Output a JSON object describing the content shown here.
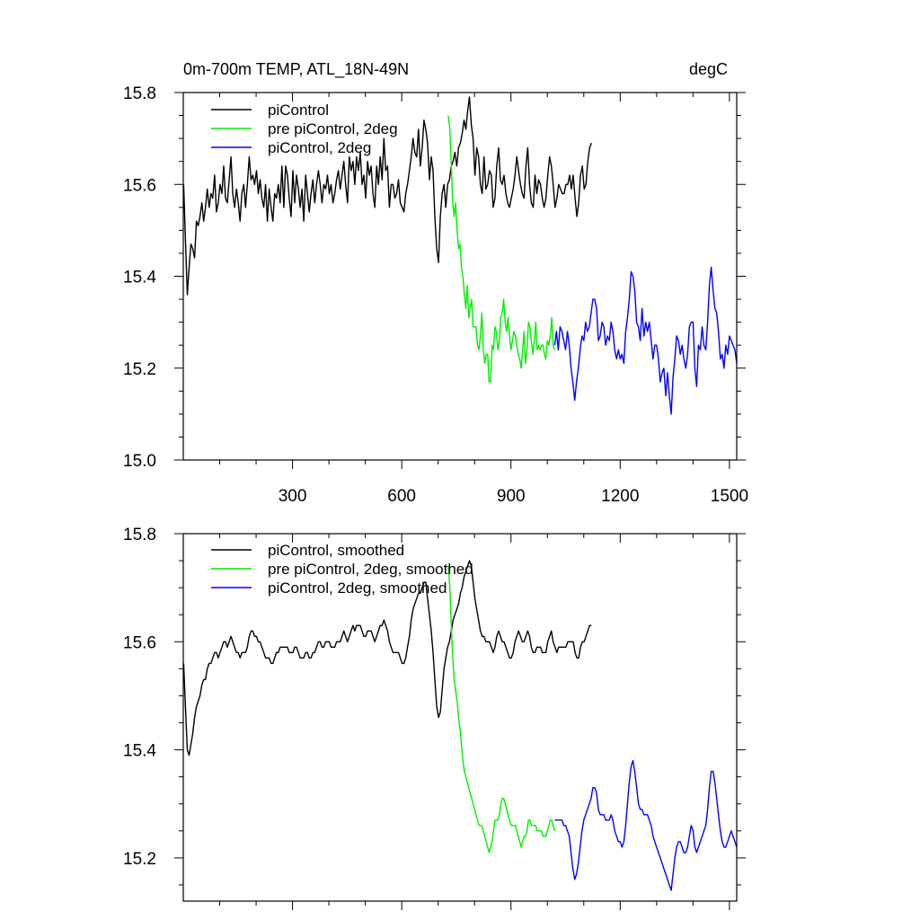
{
  "chart_data": [
    {
      "type": "line",
      "title_left": "0m-700m TEMP, ATL_18N-49N",
      "title_right": "degC",
      "xlim": [
        0,
        1520
      ],
      "ylim": [
        15.0,
        15.8
      ],
      "xticks": [
        300,
        600,
        900,
        1200,
        1500
      ],
      "yticks": [
        15.0,
        15.2,
        15.4,
        15.6,
        15.8
      ],
      "ytick_labels": [
        "15.0",
        "15.2",
        "15.4",
        "15.6",
        "15.8"
      ],
      "legend_position": "top-left",
      "series": [
        {
          "name": "piControl",
          "color": "#000000",
          "start": 1,
          "end": 1200,
          "step": 5,
          "values": [
            15.6,
            15.48,
            15.36,
            15.42,
            15.47,
            15.46,
            15.44,
            15.52,
            15.51,
            15.53,
            15.56,
            15.52,
            15.55,
            15.59,
            15.55,
            15.58,
            15.57,
            15.62,
            15.54,
            15.56,
            15.6,
            15.58,
            15.64,
            15.57,
            15.56,
            15.61,
            15.66,
            15.58,
            15.55,
            15.59,
            15.56,
            15.52,
            15.58,
            15.6,
            15.55,
            15.6,
            15.66,
            15.61,
            15.62,
            15.6,
            15.63,
            15.58,
            15.61,
            15.57,
            15.55,
            15.6,
            15.52,
            15.59,
            15.55,
            15.52,
            15.58,
            15.57,
            15.6,
            15.56,
            15.64,
            15.55,
            15.64,
            15.62,
            15.57,
            15.53,
            15.63,
            15.56,
            15.62,
            15.59,
            15.55,
            15.59,
            15.52,
            15.62,
            15.58,
            15.54,
            15.58,
            15.61,
            15.56,
            15.6,
            15.63,
            15.6,
            15.56,
            15.6,
            15.59,
            15.62,
            15.58,
            15.6,
            15.56,
            15.58,
            15.61,
            15.63,
            15.59,
            15.62,
            15.65,
            15.6,
            15.56,
            15.66,
            15.63,
            15.65,
            15.6,
            15.66,
            15.63,
            15.67,
            15.6,
            15.62,
            15.57,
            15.65,
            15.62,
            15.64,
            15.58,
            15.55,
            15.64,
            15.6,
            15.66,
            15.61,
            15.7,
            15.63,
            15.64,
            15.55,
            15.6,
            15.6,
            15.57,
            15.58,
            15.61,
            15.56,
            15.55,
            15.54,
            15.58,
            15.6,
            15.63,
            15.66,
            15.7,
            15.67,
            15.66,
            15.72,
            15.64,
            15.68,
            15.74,
            15.72,
            15.69,
            15.61,
            15.66,
            15.63,
            15.53,
            15.46,
            15.43,
            15.53,
            15.58,
            15.6,
            15.55,
            15.6,
            15.61,
            15.64,
            15.65,
            15.67,
            15.64,
            15.68,
            15.69,
            15.71,
            15.74,
            15.72,
            15.76,
            15.79,
            15.73,
            15.7,
            15.62,
            15.68,
            15.66,
            15.6,
            15.58,
            15.66,
            15.59,
            15.6,
            15.63,
            15.62,
            15.55,
            15.57,
            15.64,
            15.68,
            15.61,
            15.6,
            15.62,
            15.58,
            15.56,
            15.55,
            15.57,
            15.59,
            15.62,
            15.66,
            15.63,
            15.6,
            15.58,
            15.57,
            15.64,
            15.68,
            15.6,
            15.56,
            15.55,
            15.62,
            15.58,
            15.61,
            15.6,
            15.57,
            15.55,
            15.57,
            15.62,
            15.66,
            15.64,
            15.6,
            15.55,
            15.57,
            15.6,
            15.59,
            15.58,
            15.58,
            15.6,
            15.6,
            15.62,
            15.59,
            15.62,
            15.57,
            15.53,
            15.56,
            15.62,
            15.64,
            15.59,
            15.6,
            15.65,
            15.68,
            15.69
          ]
        },
        {
          "name": "pre piControl, 2deg",
          "color": "#00ee00",
          "start": 728,
          "end": 1020,
          "step": 4,
          "values": [
            15.75,
            15.72,
            15.64,
            15.56,
            15.53,
            15.56,
            15.5,
            15.46,
            15.47,
            15.42,
            15.4,
            15.36,
            15.33,
            15.38,
            15.31,
            15.33,
            15.35,
            15.29,
            15.29,
            15.29,
            15.25,
            15.24,
            15.27,
            15.32,
            15.24,
            15.21,
            15.23,
            15.23,
            15.17,
            15.17,
            15.25,
            15.24,
            15.29,
            15.28,
            15.24,
            15.26,
            15.31,
            15.32,
            15.35,
            15.3,
            15.28,
            15.31,
            15.27,
            15.24,
            15.26,
            15.28,
            15.27,
            15.25,
            15.23,
            15.22,
            15.2,
            15.24,
            15.28,
            15.21,
            15.24,
            15.3,
            15.29,
            15.26,
            15.23,
            15.26,
            15.3,
            15.24,
            15.25,
            15.24,
            15.25,
            15.25,
            15.23,
            15.22,
            15.26,
            15.25,
            15.27,
            15.31,
            15.25,
            15.24
          ]
        },
        {
          "name": "piControl, 2deg",
          "color": "#0000ff",
          "start": 1020,
          "end": 1520,
          "step": 5,
          "values": [
            15.25,
            15.28,
            15.24,
            15.29,
            15.28,
            15.26,
            15.24,
            15.28,
            15.25,
            15.2,
            15.17,
            15.13,
            15.17,
            15.2,
            15.24,
            15.27,
            15.26,
            15.3,
            15.28,
            15.29,
            15.32,
            15.35,
            15.35,
            15.33,
            15.26,
            15.27,
            15.3,
            15.29,
            15.25,
            15.27,
            15.26,
            15.3,
            15.28,
            15.24,
            15.22,
            15.24,
            15.22,
            15.23,
            15.21,
            15.28,
            15.31,
            15.35,
            15.41,
            15.4,
            15.37,
            15.3,
            15.29,
            15.26,
            15.33,
            15.27,
            15.3,
            15.28,
            15.3,
            15.26,
            15.22,
            15.25,
            15.25,
            15.22,
            15.17,
            15.19,
            15.2,
            15.14,
            15.19,
            15.14,
            15.1,
            15.18,
            15.22,
            15.27,
            15.26,
            15.23,
            15.25,
            15.22,
            15.2,
            15.23,
            15.29,
            15.3,
            15.3,
            15.2,
            15.16,
            15.25,
            15.24,
            15.29,
            15.25,
            15.24,
            15.3,
            15.38,
            15.42,
            15.37,
            15.33,
            15.32,
            15.28,
            15.22,
            15.23,
            15.2,
            15.25,
            15.23,
            15.27,
            15.26,
            15.25,
            15.24,
            15.21
          ]
        }
      ]
    },
    {
      "type": "line",
      "xlim": [
        0,
        1520
      ],
      "ylim": [
        15.12,
        15.8
      ],
      "xticks": [
        300,
        600,
        900,
        1200,
        1500
      ],
      "yticks": [
        15.2,
        15.4,
        15.6,
        15.8
      ],
      "ytick_labels": [
        "15.2",
        "15.4",
        "15.6",
        "15.8"
      ],
      "legend_position": "top-left",
      "series": [
        {
          "name": "piControl, smoothed",
          "color": "#000000",
          "start": 1,
          "end": 1200,
          "step": 5,
          "values": [
            15.56,
            15.48,
            15.4,
            15.39,
            15.41,
            15.43,
            15.46,
            15.48,
            15.49,
            15.5,
            15.52,
            15.53,
            15.53,
            15.55,
            15.56,
            15.56,
            15.57,
            15.58,
            15.58,
            15.57,
            15.58,
            15.59,
            15.6,
            15.6,
            15.59,
            15.6,
            15.61,
            15.6,
            15.59,
            15.58,
            15.58,
            15.57,
            15.58,
            15.58,
            15.58,
            15.59,
            15.61,
            15.62,
            15.62,
            15.61,
            15.61,
            15.6,
            15.6,
            15.59,
            15.58,
            15.57,
            15.57,
            15.57,
            15.56,
            15.56,
            15.57,
            15.58,
            15.58,
            15.59,
            15.59,
            15.59,
            15.59,
            15.59,
            15.58,
            15.58,
            15.58,
            15.59,
            15.59,
            15.58,
            15.57,
            15.57,
            15.57,
            15.58,
            15.58,
            15.57,
            15.57,
            15.58,
            15.58,
            15.59,
            15.6,
            15.6,
            15.59,
            15.59,
            15.6,
            15.6,
            15.6,
            15.59,
            15.59,
            15.59,
            15.6,
            15.6,
            15.6,
            15.61,
            15.62,
            15.61,
            15.6,
            15.61,
            15.62,
            15.63,
            15.62,
            15.63,
            15.63,
            15.63,
            15.62,
            15.61,
            15.61,
            15.62,
            15.62,
            15.62,
            15.61,
            15.6,
            15.61,
            15.62,
            15.63,
            15.63,
            15.64,
            15.63,
            15.62,
            15.6,
            15.59,
            15.58,
            15.58,
            15.58,
            15.58,
            15.57,
            15.56,
            15.56,
            15.57,
            15.59,
            15.61,
            15.64,
            15.66,
            15.67,
            15.68,
            15.69,
            15.69,
            15.7,
            15.71,
            15.71,
            15.68,
            15.65,
            15.62,
            15.58,
            15.53,
            15.48,
            15.46,
            15.47,
            15.51,
            15.55,
            15.57,
            15.59,
            15.6,
            15.62,
            15.64,
            15.65,
            15.66,
            15.67,
            15.69,
            15.7,
            15.72,
            15.73,
            15.74,
            15.75,
            15.74,
            15.71,
            15.68,
            15.66,
            15.64,
            15.62,
            15.61,
            15.61,
            15.6,
            15.6,
            15.6,
            15.59,
            15.58,
            15.59,
            15.61,
            15.62,
            15.61,
            15.6,
            15.6,
            15.59,
            15.58,
            15.57,
            15.57,
            15.58,
            15.6,
            15.61,
            15.62,
            15.61,
            15.6,
            15.6,
            15.61,
            15.62,
            15.61,
            15.59,
            15.58,
            15.58,
            15.59,
            15.59,
            15.59,
            15.58,
            15.58,
            15.58,
            15.6,
            15.61,
            15.62,
            15.6,
            15.59,
            15.58,
            15.59,
            15.59,
            15.59,
            15.59,
            15.59,
            15.6,
            15.6,
            15.6,
            15.6,
            15.58,
            15.57,
            15.57,
            15.59,
            15.6,
            15.6,
            15.61,
            15.62,
            15.63,
            15.63
          ]
        },
        {
          "name": "pre piControl, 2deg, smoothed",
          "color": "#00ee00",
          "start": 728,
          "end": 1020,
          "step": 4,
          "values": [
            15.74,
            15.7,
            15.63,
            15.57,
            15.53,
            15.51,
            15.49,
            15.46,
            15.44,
            15.41,
            15.38,
            15.36,
            15.35,
            15.34,
            15.33,
            15.32,
            15.31,
            15.3,
            15.29,
            15.28,
            15.27,
            15.26,
            15.26,
            15.26,
            15.25,
            15.24,
            15.23,
            15.22,
            15.21,
            15.22,
            15.23,
            15.25,
            15.27,
            15.27,
            15.27,
            15.28,
            15.3,
            15.31,
            15.31,
            15.3,
            15.29,
            15.28,
            15.27,
            15.26,
            15.26,
            15.26,
            15.26,
            15.25,
            15.24,
            15.23,
            15.22,
            15.23,
            15.24,
            15.24,
            15.25,
            15.27,
            15.27,
            15.26,
            15.26,
            15.26,
            15.26,
            15.25,
            15.25,
            15.25,
            15.25,
            15.24,
            15.24,
            15.24,
            15.25,
            15.26,
            15.27,
            15.27,
            15.26,
            15.25
          ]
        },
        {
          "name": "piControl, 2deg, smoothed",
          "color": "#0000ff",
          "start": 1020,
          "end": 1520,
          "step": 5,
          "values": [
            15.27,
            15.27,
            15.27,
            15.27,
            15.27,
            15.26,
            15.26,
            15.25,
            15.24,
            15.21,
            15.18,
            15.16,
            15.17,
            15.19,
            15.22,
            15.25,
            15.27,
            15.28,
            15.29,
            15.3,
            15.31,
            15.33,
            15.33,
            15.32,
            15.29,
            15.28,
            15.28,
            15.28,
            15.27,
            15.27,
            15.27,
            15.28,
            15.27,
            15.25,
            15.24,
            15.23,
            15.23,
            15.22,
            15.23,
            15.26,
            15.3,
            15.34,
            15.37,
            15.38,
            15.36,
            15.33,
            15.3,
            15.29,
            15.29,
            15.28,
            15.28,
            15.28,
            15.27,
            15.26,
            15.24,
            15.23,
            15.22,
            15.21,
            15.2,
            15.19,
            15.18,
            15.17,
            15.16,
            15.15,
            15.14,
            15.17,
            15.2,
            15.22,
            15.23,
            15.23,
            15.22,
            15.21,
            15.21,
            15.22,
            15.24,
            15.26,
            15.25,
            15.22,
            15.21,
            15.22,
            15.23,
            15.24,
            15.25,
            15.26,
            15.29,
            15.33,
            15.36,
            15.36,
            15.34,
            15.31,
            15.28,
            15.25,
            15.23,
            15.22,
            15.22,
            15.23,
            15.24,
            15.25,
            15.24,
            15.23,
            15.22
          ]
        }
      ]
    }
  ]
}
